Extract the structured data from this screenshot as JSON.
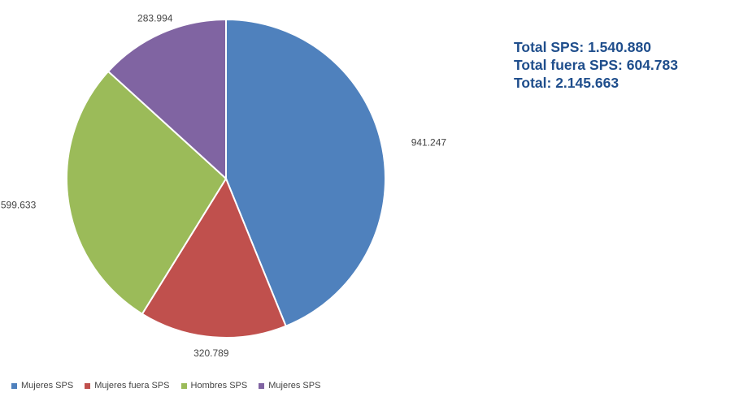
{
  "chart_data": {
    "type": "pie",
    "title": "",
    "categories": [
      "Mujeres SPS",
      "Mujeres fuera SPS",
      "Hombres SPS",
      "Mujeres SPS"
    ],
    "values": [
      941247,
      320789,
      599633,
      283994
    ],
    "value_labels": [
      "941.247",
      "320.789",
      "599.633",
      "283.994"
    ],
    "colors": [
      "#4f81bd",
      "#c0504d",
      "#9bbb59",
      "#8064a2"
    ],
    "start": "12 o'clock",
    "direction": "clockwise",
    "legend_position": "bottom-left"
  },
  "summary": {
    "color": "#1f4e8c",
    "lines": [
      "Total SPS: 1.540.880",
      "Total fuera SPS: 604.783",
      "Total: 2.145.663"
    ]
  },
  "legend": {
    "items": [
      {
        "label": "Mujeres SPS",
        "color": "#4f81bd"
      },
      {
        "label": "Mujeres fuera SPS",
        "color": "#c0504d"
      },
      {
        "label": "Hombres SPS",
        "color": "#9bbb59"
      },
      {
        "label": "Mujeres SPS",
        "color": "#8064a2"
      }
    ]
  }
}
